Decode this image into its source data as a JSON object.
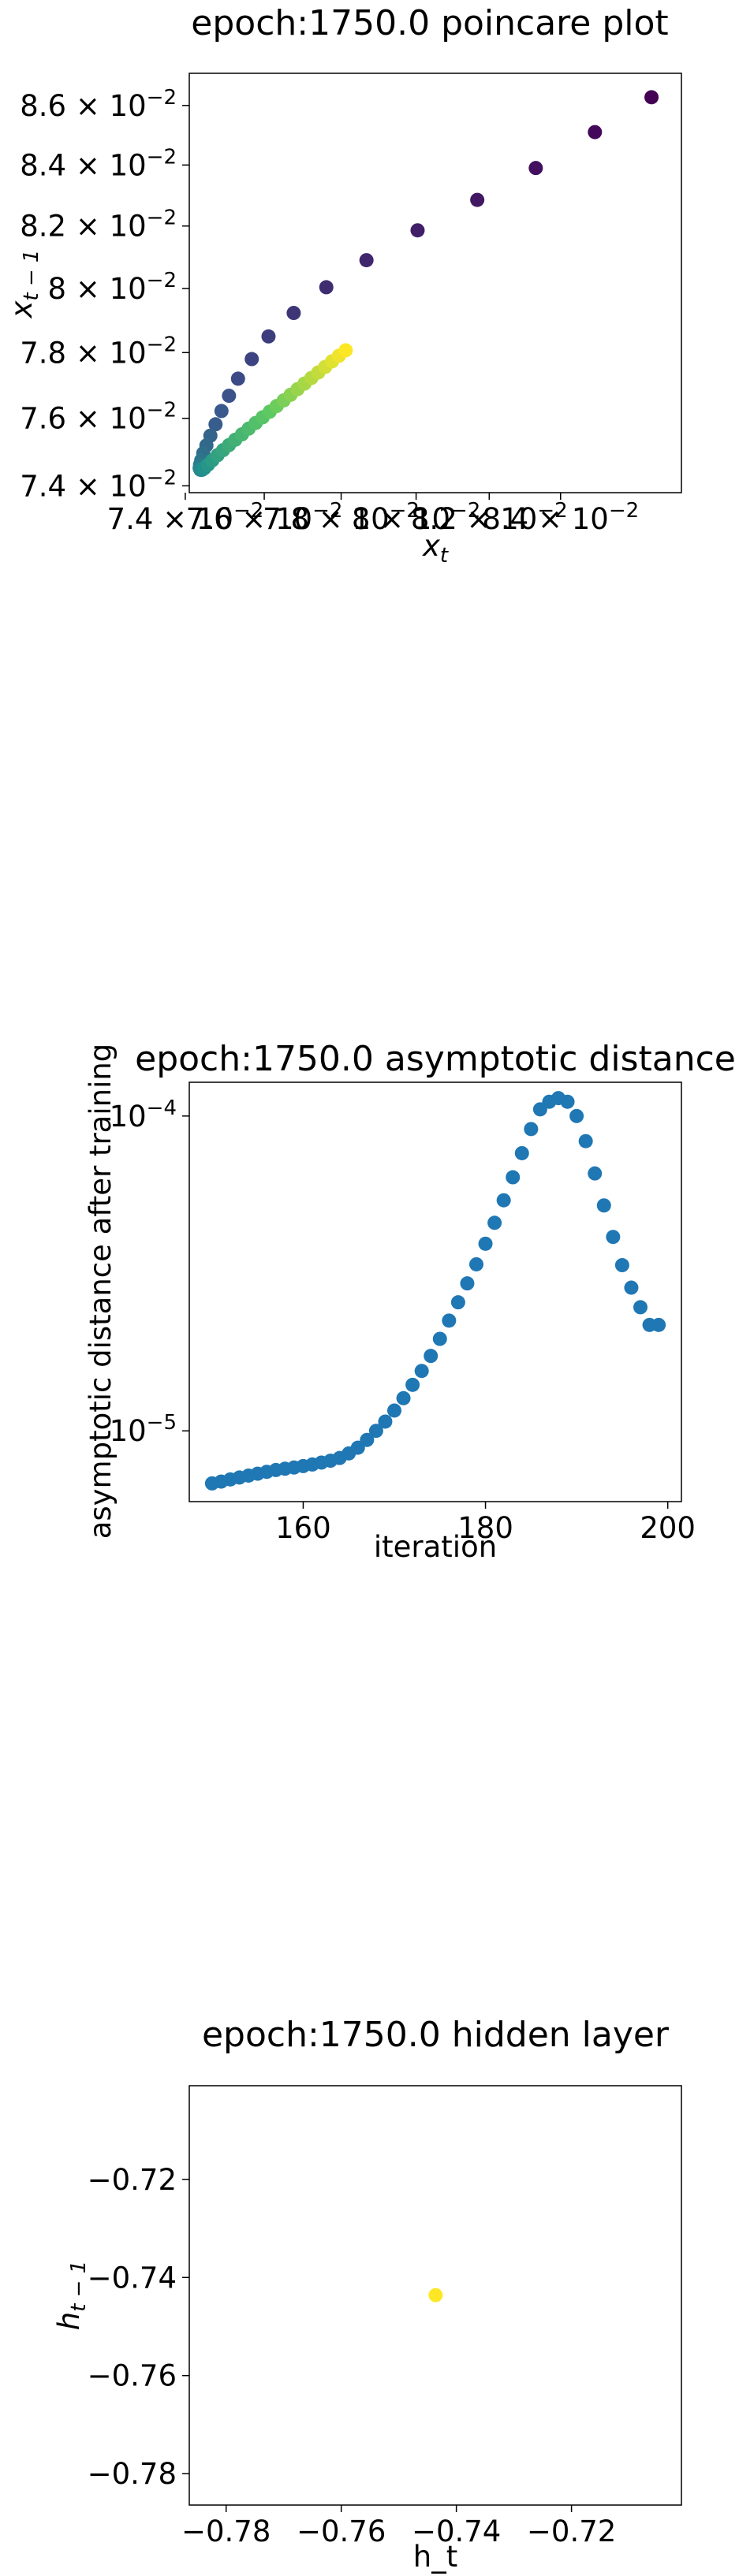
{
  "chart_data": [
    {
      "type": "scatter",
      "title": "epoch:1750.0 poincare plot",
      "xlabel": "x_t",
      "ylabel": "x_{t-1}",
      "xscale": "log",
      "yscale": "log",
      "xlim": [
        0.0741,
        0.0875
      ],
      "ylim": [
        0.0738,
        0.0871
      ],
      "xticks": [
        {
          "value": 0.074,
          "label": "7.4 × 10^-2"
        },
        {
          "value": 0.076,
          "label": "7.6 × 10^-2"
        },
        {
          "value": 0.078,
          "label": "7.8 × 10^-2"
        },
        {
          "value": 0.08,
          "label": "8 × 10^-2"
        },
        {
          "value": 0.082,
          "label": "8.2 × 10^-2"
        },
        {
          "value": 0.084,
          "label": "8.4 × 10^-2"
        }
      ],
      "yticks": [
        {
          "value": 0.074,
          "label": "7.4 × 10^-2"
        },
        {
          "value": 0.076,
          "label": "7.6 × 10^-2"
        },
        {
          "value": 0.078,
          "label": "7.8 × 10^-2"
        },
        {
          "value": 0.08,
          "label": "8 × 10^-2"
        },
        {
          "value": 0.082,
          "label": "8.2 × 10^-2"
        },
        {
          "value": 0.084,
          "label": "8.4 × 10^-2"
        },
        {
          "value": 0.086,
          "label": "8.6 × 10^-2"
        }
      ],
      "grid": false,
      "colormap": [
        "#440154",
        "#3b528b",
        "#21918c",
        "#5ec962",
        "#fde725"
      ],
      "points": [
        [
          0.08662,
          0.08628
        ],
        [
          0.08498,
          0.0851
        ],
        [
          0.0833,
          0.0839
        ],
        [
          0.08167,
          0.08285
        ],
        [
          0.08004,
          0.08186
        ],
        [
          0.07867,
          0.0809
        ],
        [
          0.07761,
          0.08004
        ],
        [
          0.07676,
          0.07923
        ],
        [
          0.07611,
          0.0785
        ],
        [
          0.07568,
          0.0778
        ],
        [
          0.07533,
          0.0772
        ],
        [
          0.0751,
          0.07668
        ],
        [
          0.07491,
          0.07622
        ],
        [
          0.07476,
          0.07582
        ],
        [
          0.07463,
          0.07548
        ],
        [
          0.07453,
          0.07519
        ],
        [
          0.07445,
          0.07496
        ],
        [
          0.0744,
          0.07475
        ],
        [
          0.07437,
          0.07462
        ],
        [
          0.07436,
          0.07452
        ],
        [
          0.07438,
          0.07447
        ],
        [
          0.07442,
          0.07447
        ],
        [
          0.07448,
          0.07452
        ],
        [
          0.07457,
          0.07462
        ],
        [
          0.07468,
          0.07475
        ],
        [
          0.07481,
          0.0749
        ],
        [
          0.07495,
          0.07505
        ],
        [
          0.0751,
          0.0752
        ],
        [
          0.07526,
          0.07536
        ],
        [
          0.07543,
          0.07552
        ],
        [
          0.0756,
          0.07569
        ],
        [
          0.07578,
          0.07586
        ],
        [
          0.07596,
          0.07603
        ],
        [
          0.07614,
          0.0762
        ],
        [
          0.07632,
          0.07637
        ],
        [
          0.0765,
          0.07654
        ],
        [
          0.07668,
          0.07671
        ],
        [
          0.07686,
          0.07688
        ],
        [
          0.07704,
          0.07705
        ],
        [
          0.07722,
          0.07722
        ],
        [
          0.0774,
          0.07739
        ],
        [
          0.07758,
          0.07756
        ],
        [
          0.07776,
          0.07773
        ],
        [
          0.07794,
          0.0779
        ],
        [
          0.07812,
          0.07807
        ]
      ]
    },
    {
      "type": "scatter",
      "title": "epoch:1750.0 asymptotic distance",
      "xlabel": "iteration",
      "ylabel": "asymptotic distance after training",
      "xscale": "linear",
      "yscale": "log",
      "xlim": [
        147.5,
        201.5
      ],
      "ylim": [
        5.96e-06,
        0.000128
      ],
      "xticks": [
        {
          "value": 160,
          "label": "160"
        },
        {
          "value": 180,
          "label": "180"
        },
        {
          "value": 200,
          "label": "200"
        }
      ],
      "yticks": [
        {
          "value": 1e-05,
          "label": "10^-5"
        },
        {
          "value": 0.0001,
          "label": "10^-4"
        }
      ],
      "grid": false,
      "color": "#1f77b4",
      "x": [
        150,
        151,
        152,
        153,
        154,
        155,
        156,
        157,
        158,
        159,
        160,
        161,
        162,
        163,
        164,
        165,
        166,
        167,
        168,
        169,
        170,
        171,
        172,
        173,
        174,
        175,
        176,
        177,
        178,
        179,
        180,
        181,
        182,
        183,
        184,
        185,
        186,
        187,
        188,
        189,
        190,
        191,
        192,
        193,
        194,
        195,
        196,
        197,
        198,
        199
      ],
      "y": [
        6.81e-06,
        6.9e-06,
        7.01e-06,
        7.11e-06,
        7.21e-06,
        7.31e-06,
        7.41e-06,
        7.51e-06,
        7.58e-06,
        7.65e-06,
        7.73e-06,
        7.82e-06,
        7.93e-06,
        8.04e-06,
        8.2e-06,
        8.48e-06,
        8.84e-06,
        9.36e-06,
        1e-05,
        1.07e-05,
        1.16e-05,
        1.27e-05,
        1.4e-05,
        1.55e-05,
        1.73e-05,
        1.96e-05,
        2.24e-05,
        2.56e-05,
        2.94e-05,
        3.38e-05,
        3.93e-05,
        4.58e-05,
        5.4e-05,
        6.39e-05,
        7.62e-05,
        9.09e-05,
        0.000105,
        0.000111,
        0.000114,
        0.000111,
        0.0001,
        8.32e-05,
        6.57e-05,
        5.2e-05,
        4.13e-05,
        3.36e-05,
        2.85e-05,
        2.47e-05,
        2.17e-05,
        2.17e-05
      ]
    },
    {
      "type": "scatter",
      "title": "epoch:1750.0 hidden layer",
      "xlabel": "h_t",
      "ylabel": "h_{t-1}",
      "xscale": "linear",
      "yscale": "linear",
      "xlim": [
        -0.7864,
        -0.7009
      ],
      "ylim": [
        -0.7864,
        -0.7009
      ],
      "xticks": [
        {
          "value": -0.78,
          "label": "−0.78"
        },
        {
          "value": -0.76,
          "label": "−0.76"
        },
        {
          "value": -0.74,
          "label": "−0.74"
        },
        {
          "value": -0.72,
          "label": "−0.72"
        }
      ],
      "yticks": [
        {
          "value": -0.78,
          "label": "−0.78"
        },
        {
          "value": -0.76,
          "label": "−0.76"
        },
        {
          "value": -0.74,
          "label": "−0.74"
        },
        {
          "value": -0.72,
          "label": "−0.72"
        }
      ],
      "grid": false,
      "color": "#fde725",
      "points": [
        [
          -0.7436,
          -0.7436
        ]
      ]
    }
  ]
}
